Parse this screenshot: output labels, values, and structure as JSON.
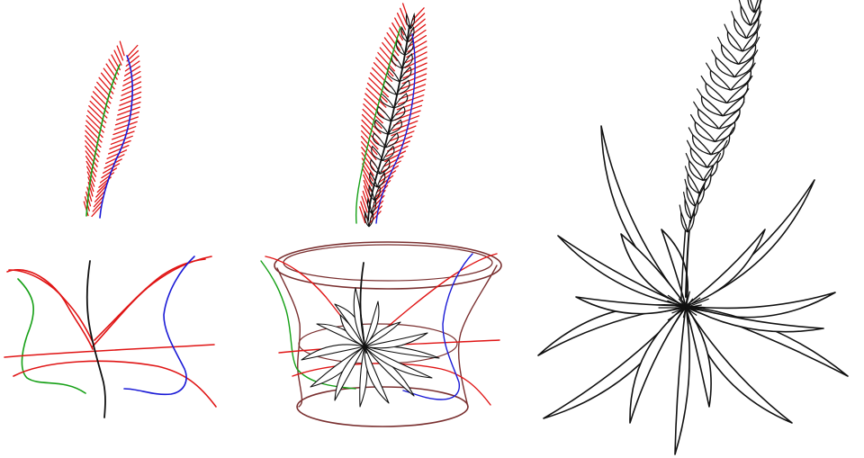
{
  "figure": {
    "panels": [
      {
        "id": "sketch-strokes",
        "kind": "input-sketch"
      },
      {
        "id": "sketch-with-proxies",
        "kind": "intermediate"
      },
      {
        "id": "final-plant",
        "kind": "result"
      }
    ],
    "stroke_colors": {
      "red": "#e01515",
      "green": "#16a016",
      "blue": "#1a1ad6",
      "black": "#111111",
      "proxy": "#7a3030"
    }
  }
}
